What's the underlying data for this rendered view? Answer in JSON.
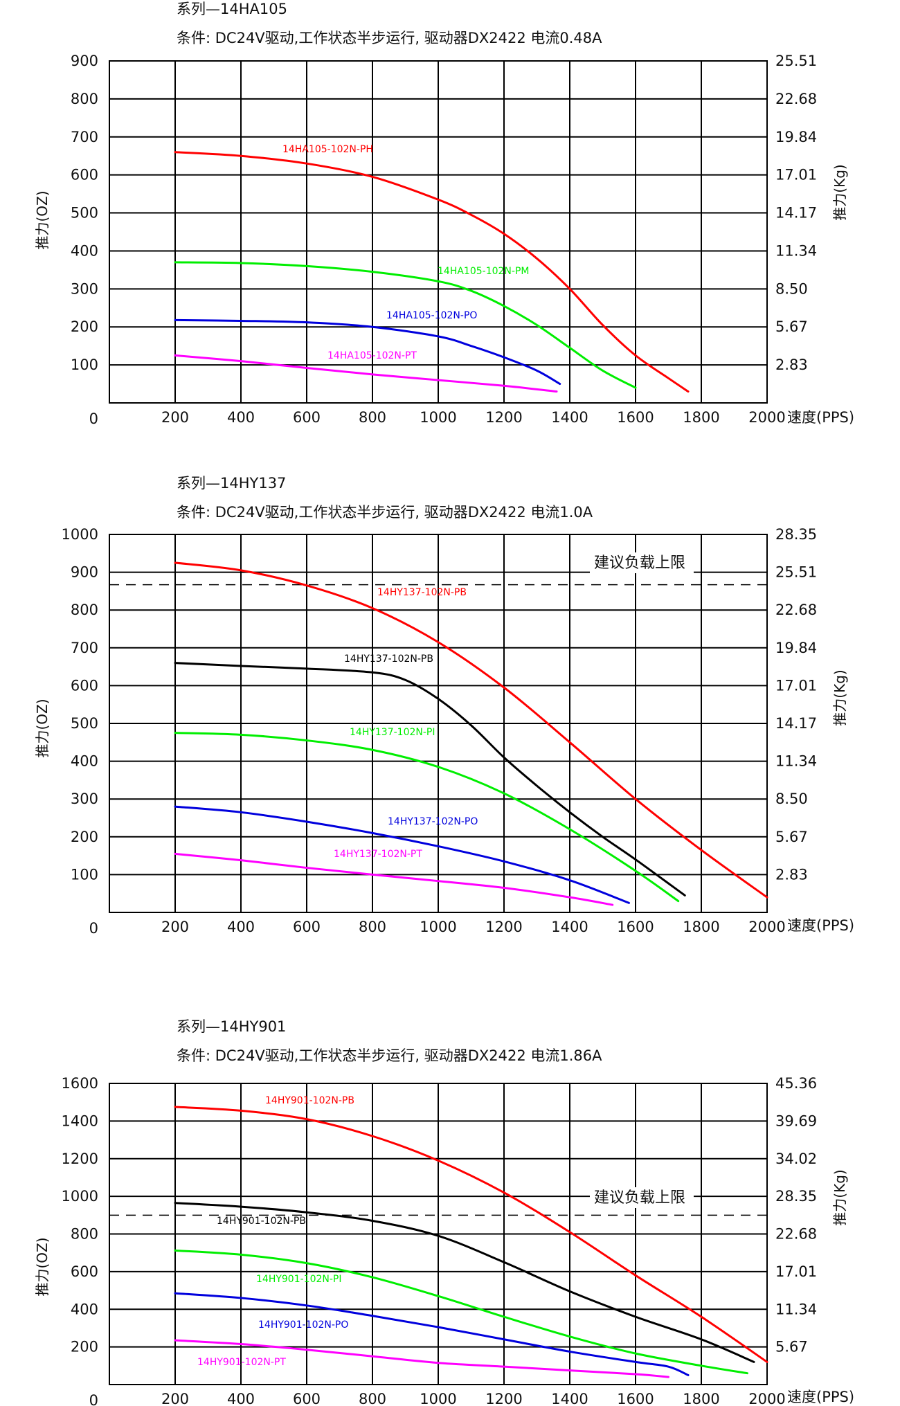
{
  "chart_data": [
    {
      "type": "line",
      "series_title": "系列—14HA105",
      "conditions": "条件: DC24V驱动,工作状态半步运行, 驱动器DX2422 电流0.48A",
      "ylabel_left": "推力(OZ)",
      "ylabel_right": "推力(Kg)",
      "xlabel": "速度(PPS)",
      "xlim": [
        0,
        2000
      ],
      "ylim": [
        0,
        900
      ],
      "x_ticks": [
        "200",
        "400",
        "600",
        "800",
        "1000",
        "1200",
        "1400",
        "1600",
        "1800",
        "2000"
      ],
      "y_ticks_left": [
        "0",
        "100",
        "200",
        "300",
        "400",
        "500",
        "600",
        "700",
        "800",
        "900"
      ],
      "y_ticks_right": [
        "2.83",
        "5.67",
        "8.50",
        "11.34",
        "14.17",
        "17.01",
        "19.84",
        "22.68",
        "25.51"
      ],
      "grid": true,
      "series": [
        {
          "name": "14HA105-102N-PH",
          "color": "#ff0000",
          "x": [
            200,
            400,
            600,
            800,
            1000,
            1100,
            1200,
            1300,
            1400,
            1500,
            1600,
            1700,
            1760
          ],
          "y": [
            660,
            650,
            630,
            595,
            535,
            495,
            445,
            380,
            300,
            205,
            125,
            65,
            30
          ]
        },
        {
          "name": "14HA105-102N-PM",
          "color": "#00ee00",
          "x": [
            200,
            400,
            600,
            800,
            1000,
            1100,
            1200,
            1300,
            1400,
            1500,
            1600
          ],
          "y": [
            370,
            368,
            360,
            345,
            320,
            295,
            255,
            205,
            145,
            85,
            40
          ]
        },
        {
          "name": "14HA105-102N-PO",
          "color": "#0000dd",
          "x": [
            200,
            400,
            600,
            800,
            1000,
            1100,
            1200,
            1300,
            1370
          ],
          "y": [
            218,
            216,
            212,
            200,
            175,
            150,
            120,
            85,
            50
          ]
        },
        {
          "name": "14HA105-102N-PT",
          "color": "#ff00ff",
          "x": [
            200,
            400,
            600,
            800,
            1000,
            1200,
            1360
          ],
          "y": [
            125,
            110,
            92,
            75,
            60,
            45,
            30
          ]
        }
      ],
      "series_labels": [
        "14HA105-102N-PH",
        "14HA105-102N-PM",
        "14HA105-102N-PO",
        "14HA105-102N-PT"
      ],
      "limit_line": null
    },
    {
      "type": "line",
      "series_title": "系列—14HY137",
      "conditions": "条件: DC24V驱动,工作状态半步运行, 驱动器DX2422 电流1.0A",
      "ylabel_left": "推力(OZ)",
      "ylabel_right": "推力(Kg)",
      "xlabel": "速度(PPS)",
      "xlim": [
        0,
        2000
      ],
      "ylim": [
        0,
        1000
      ],
      "x_ticks": [
        "200",
        "400",
        "600",
        "800",
        "1000",
        "1200",
        "1400",
        "1600",
        "1800",
        "2000"
      ],
      "y_ticks_left": [
        "0",
        "100",
        "200",
        "300",
        "400",
        "500",
        "600",
        "700",
        "800",
        "900",
        "1000"
      ],
      "y_ticks_right": [
        "2.83",
        "5.67",
        "8.50",
        "11.34",
        "14.17",
        "17.01",
        "19.84",
        "22.68",
        "25.51",
        "28.35"
      ],
      "grid": true,
      "series": [
        {
          "name": "14HY137-102N-PB",
          "color": "#ff0000",
          "x": [
            200,
            400,
            600,
            800,
            1000,
            1200,
            1400,
            1600,
            1800,
            2000
          ],
          "y": [
            925,
            905,
            865,
            805,
            715,
            595,
            450,
            300,
            165,
            40
          ]
        },
        {
          "name": "14HY137-102N-PB",
          "color": "#000000",
          "x": [
            200,
            400,
            600,
            800,
            900,
            1000,
            1100,
            1200,
            1300,
            1400,
            1500,
            1600,
            1750
          ],
          "y": [
            660,
            652,
            645,
            635,
            615,
            565,
            495,
            410,
            335,
            265,
            200,
            140,
            45
          ]
        },
        {
          "name": "14HY137-102N-PI",
          "color": "#00ee00",
          "x": [
            200,
            400,
            600,
            800,
            1000,
            1200,
            1400,
            1600,
            1730
          ],
          "y": [
            475,
            470,
            455,
            430,
            385,
            315,
            220,
            110,
            30
          ]
        },
        {
          "name": "14HY137-102N-PO",
          "color": "#0000dd",
          "x": [
            200,
            400,
            600,
            800,
            1000,
            1200,
            1400,
            1580
          ],
          "y": [
            280,
            265,
            240,
            210,
            175,
            135,
            85,
            25
          ]
        },
        {
          "name": "14HY137-102N-PT",
          "color": "#ff00ff",
          "x": [
            200,
            400,
            600,
            800,
            1000,
            1200,
            1400,
            1530
          ],
          "y": [
            155,
            138,
            118,
            100,
            83,
            65,
            40,
            20
          ]
        }
      ],
      "series_labels": [
        "14HY137-102N-PB",
        "14HY137-102N-PB",
        "14HY137-102N-PI",
        "14HY137-102N-PO",
        "14HY137-102N-PT"
      ],
      "limit_line": {
        "label": "建议负载上限",
        "y": 867
      }
    },
    {
      "type": "line",
      "series_title": "系列—14HY901",
      "conditions": "条件: DC24V驱动,工作状态半步运行, 驱动器DX2422 电流1.86A",
      "ylabel_left": "推力(OZ)",
      "ylabel_right": "推力(Kg)",
      "xlabel": "速度(PPS)",
      "xlim": [
        0,
        2000
      ],
      "ylim": [
        0,
        1600
      ],
      "x_ticks": [
        "200",
        "400",
        "600",
        "800",
        "1000",
        "1200",
        "1400",
        "1600",
        "1800",
        "2000"
      ],
      "y_ticks_left": [
        "0",
        "200",
        "400",
        "600",
        "800",
        "1000",
        "1200",
        "1400",
        "1600"
      ],
      "y_ticks_right": [
        "5.67",
        "11.34",
        "17.01",
        "22.68",
        "28.35",
        "34.02",
        "39.69",
        "45.36"
      ],
      "grid": true,
      "series": [
        {
          "name": "14HY901-102N-PB",
          "color": "#ff0000",
          "x": [
            200,
            400,
            600,
            800,
            1000,
            1200,
            1400,
            1600,
            1800,
            2000
          ],
          "y": [
            1475,
            1455,
            1410,
            1320,
            1190,
            1020,
            810,
            580,
            360,
            120
          ]
        },
        {
          "name": "14HY901-102N-PB",
          "color": "#000000",
          "x": [
            200,
            400,
            600,
            800,
            1000,
            1200,
            1400,
            1600,
            1800,
            1960
          ],
          "y": [
            965,
            945,
            915,
            870,
            790,
            650,
            495,
            360,
            240,
            120
          ]
        },
        {
          "name": "14HY901-102N-PI",
          "color": "#00ee00",
          "x": [
            200,
            400,
            600,
            800,
            1000,
            1200,
            1400,
            1600,
            1800,
            1940
          ],
          "y": [
            712,
            690,
            645,
            570,
            470,
            360,
            255,
            165,
            100,
            60
          ]
        },
        {
          "name": "14HY901-102N-PO",
          "color": "#0000dd",
          "x": [
            200,
            400,
            600,
            800,
            1000,
            1200,
            1400,
            1600,
            1700,
            1760
          ],
          "y": [
            485,
            460,
            420,
            365,
            305,
            240,
            175,
            120,
            95,
            50
          ]
        },
        {
          "name": "14HY901-102N-PT",
          "color": "#ff00ff",
          "x": [
            200,
            400,
            600,
            800,
            1000,
            1200,
            1400,
            1600,
            1700
          ],
          "y": [
            235,
            215,
            185,
            150,
            115,
            95,
            75,
            55,
            40
          ]
        }
      ],
      "series_labels": [
        "14HY901-102N-PB",
        "14HY901-102N-PB",
        "14HY901-102N-PI",
        "14HY901-102N-PO",
        "14HY901-102N-PT"
      ],
      "limit_line": {
        "label": "建议负载上限",
        "y": 900
      }
    }
  ]
}
